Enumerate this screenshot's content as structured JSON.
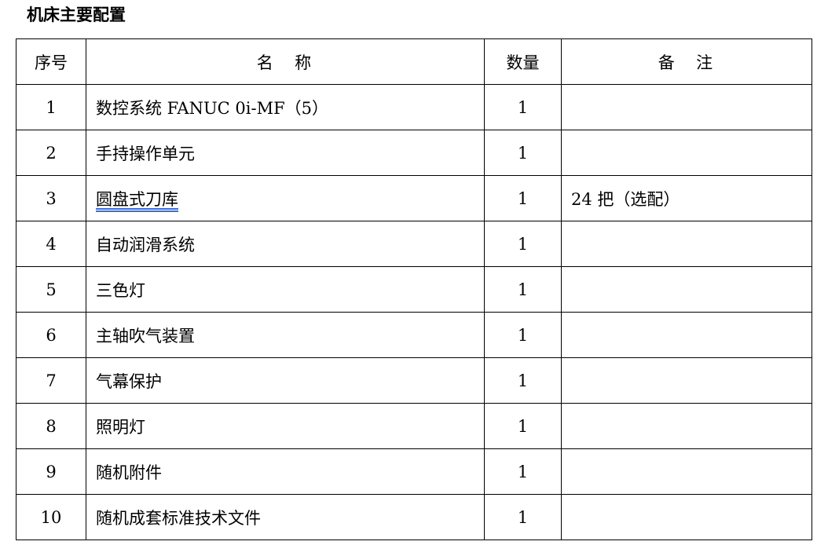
{
  "title": "机床主要配置",
  "table": {
    "headers": [
      "序号",
      "名　称",
      "数量",
      "备　注"
    ],
    "rows": [
      {
        "no": "1",
        "name": "数控系统 FANUC 0i-MF（5）",
        "qty": "1",
        "note": ""
      },
      {
        "no": "2",
        "name": "手持操作单元",
        "qty": "1",
        "note": ""
      },
      {
        "no": "3",
        "name": "圆盘式刀库",
        "qty": "1",
        "note": "24 把（选配）"
      },
      {
        "no": "4",
        "name": "自动润滑系统",
        "qty": "1",
        "note": ""
      },
      {
        "no": "5",
        "name": "三色灯",
        "qty": "1",
        "note": ""
      },
      {
        "no": "6",
        "name": "主轴吹气装置",
        "qty": "1",
        "note": ""
      },
      {
        "no": "7",
        "name": "气幕保护",
        "qty": "1",
        "note": ""
      },
      {
        "no": "8",
        "name": "照明灯",
        "qty": "1",
        "note": ""
      },
      {
        "no": "9",
        "name": "随机附件",
        "qty": "1",
        "note": ""
      },
      {
        "no": "10",
        "name": "随机成套标准技术文件",
        "qty": "1",
        "note": ""
      }
    ]
  }
}
